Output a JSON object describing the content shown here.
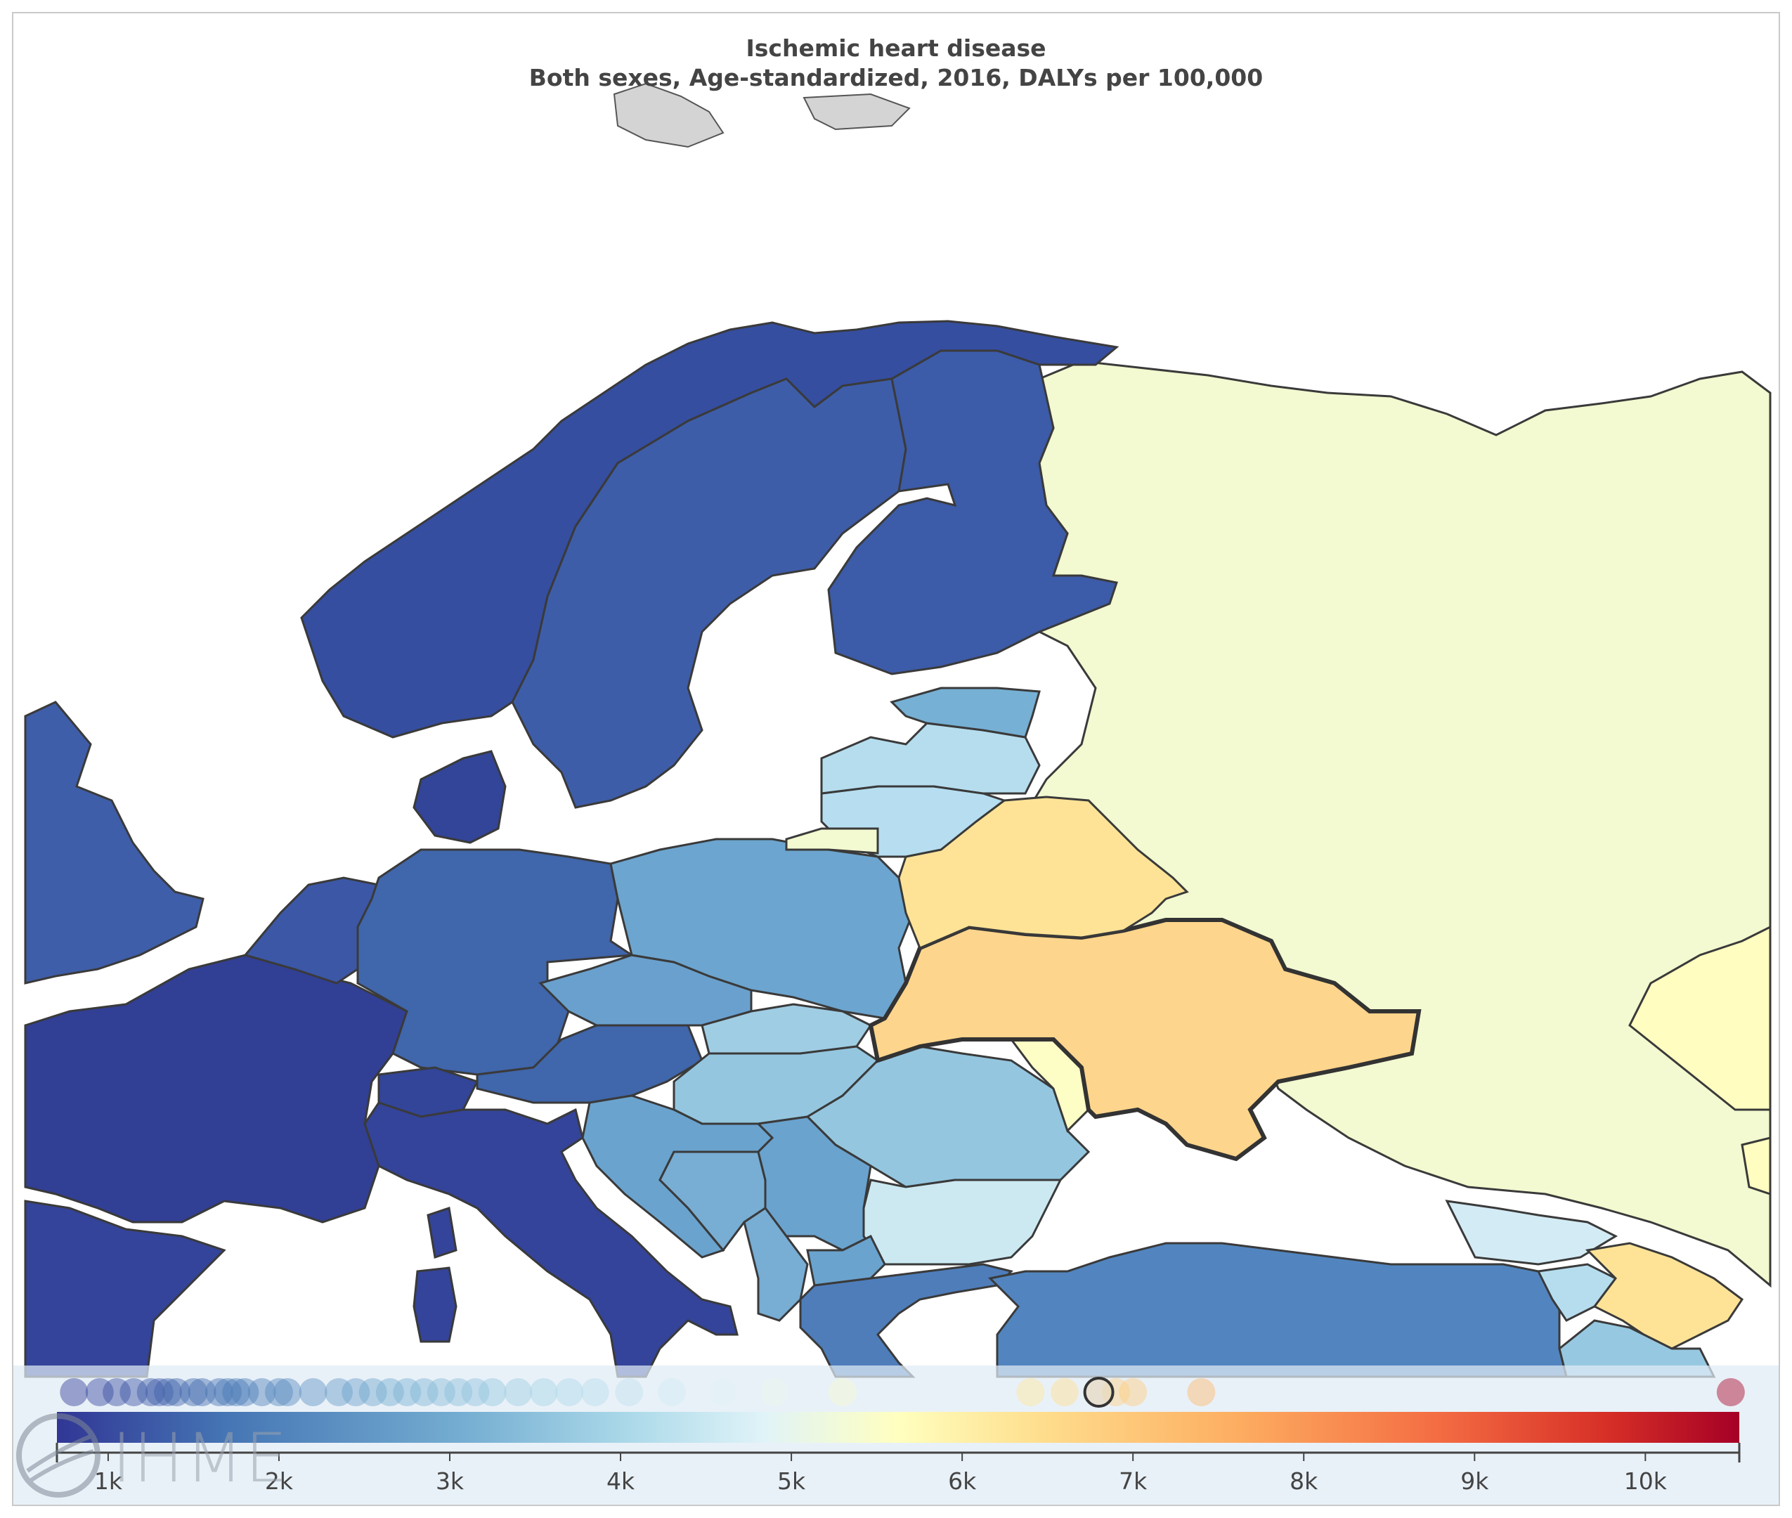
{
  "title": {
    "main": "Ischemic heart disease",
    "subtitle": "Both sexes, Age-standardized, 2016, DALYs per 100,000"
  },
  "legend": {
    "tick_labels": [
      "1k",
      "2k",
      "3k",
      "4k",
      "5k",
      "6k",
      "7k",
      "8k",
      "9k",
      "10k"
    ],
    "tick_values": [
      1000,
      2000,
      3000,
      4000,
      5000,
      6000,
      7000,
      8000,
      9000,
      10000
    ],
    "range": [
      700,
      10550
    ],
    "selected_value": 6800,
    "colors": [
      "#313695",
      "#4575b4",
      "#74add1",
      "#abd9e9",
      "#e0f3f8",
      "#ffffbf",
      "#fee090",
      "#fdae61",
      "#f46d43",
      "#d73027",
      "#a50026"
    ]
  },
  "logo": {
    "text": "IHME"
  },
  "chart_data": {
    "type": "choropleth",
    "measure": "DALYs per 100,000",
    "cause": "Ischemic heart disease",
    "sex": "Both sexes",
    "age": "Age-standardized",
    "year": 2016,
    "color_scale": "RdYlBu reversed",
    "highlighted_region": "Ukraine",
    "distribution_dots": [
      800,
      950,
      1050,
      1150,
      1250,
      1300,
      1350,
      1400,
      1500,
      1550,
      1650,
      1700,
      1750,
      1800,
      1900,
      2000,
      2050,
      2200,
      2350,
      2450,
      2550,
      2650,
      2750,
      2850,
      2950,
      3050,
      3150,
      3250,
      3400,
      3550,
      3700,
      3850,
      4050,
      4300,
      4600,
      4900,
      5300,
      6400,
      6600,
      6800,
      6900,
      7000,
      7400,
      10500
    ]
  }
}
